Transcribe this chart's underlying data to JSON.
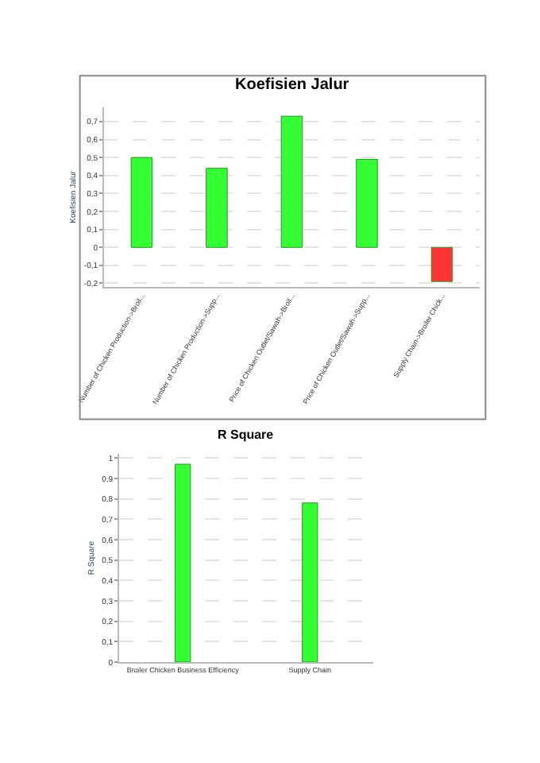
{
  "chart_data": [
    {
      "type": "bar",
      "title": "Koefisien Jalur",
      "ylabel": "Koefisien Jalur",
      "categories": [
        "Number of Chicken Production->Broil...",
        "Number of Chicken Production->Supp...",
        "Price of Chicken Outlet/Sawah->Broil...",
        "Price of Chicken Outlet/Sawah->Supp...",
        "Supply Chain->Broiler Chick..."
      ],
      "values": [
        0.5,
        0.44,
        0.73,
        0.49,
        -0.19
      ],
      "colors": [
        "#33ff33",
        "#33ff33",
        "#33ff33",
        "#33ff33",
        "#ff3333"
      ],
      "ylim": [
        -0.22,
        0.78
      ],
      "yticks": [
        {
          "value": -0.2,
          "label": "-0,2"
        },
        {
          "value": -0.1,
          "label": "-0,1"
        },
        0,
        {
          "value": 0.1,
          "label": "0,1"
        },
        {
          "value": 0.2,
          "label": "0,2"
        },
        {
          "value": 0.3,
          "label": "0,3"
        },
        {
          "value": 0.4,
          "label": "0,4"
        },
        {
          "value": 0.5,
          "label": "0,5"
        },
        {
          "value": 0.6,
          "label": "0,6"
        },
        {
          "value": 0.7,
          "label": "0,7"
        }
      ],
      "grid": "y"
    },
    {
      "type": "bar",
      "title": "R Square",
      "ylabel": "R Square",
      "categories": [
        "Broiler Chicken Business Efficiency",
        "Supply Chain"
      ],
      "values": [
        0.97,
        0.78
      ],
      "colors": [
        "#33ff33",
        "#33ff33"
      ],
      "ylim": [
        0,
        1.02
      ],
      "yticks": [
        0,
        {
          "value": 0.1,
          "label": "0,1"
        },
        {
          "value": 0.2,
          "label": "0,2"
        },
        {
          "value": 0.3,
          "label": "0,3"
        },
        {
          "value": 0.4,
          "label": "0,4"
        },
        {
          "value": 0.5,
          "label": "0,5"
        },
        {
          "value": 0.6,
          "label": "0,6"
        },
        {
          "value": 0.7,
          "label": "0,7"
        },
        {
          "value": 0.8,
          "label": "0,8"
        },
        {
          "value": 0.9,
          "label": "0,9"
        },
        1
      ],
      "grid": "y"
    }
  ]
}
